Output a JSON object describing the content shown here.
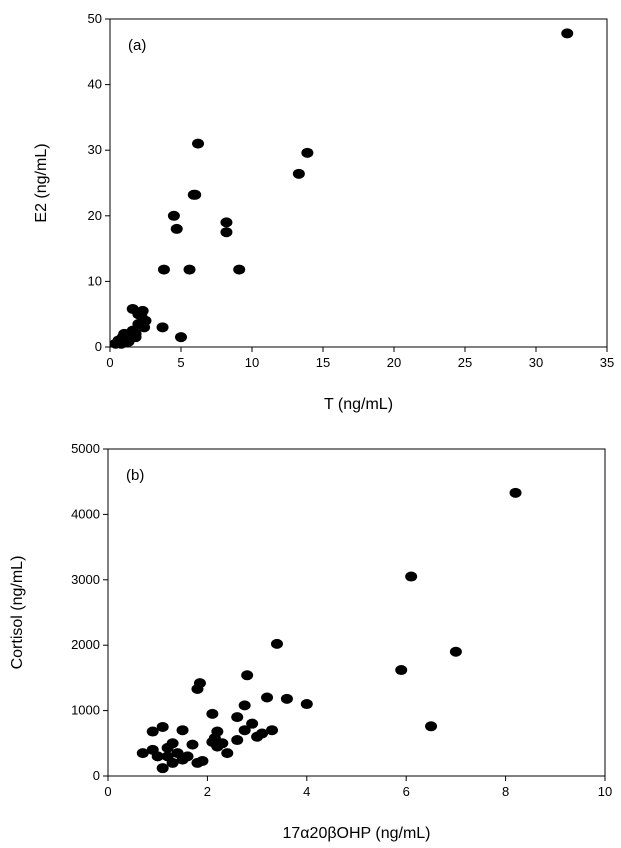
{
  "chart_data": [
    {
      "type": "scatter",
      "panel_label": "(a)",
      "xlabel": "T (ng/mL)",
      "ylabel": "E2 (ng/mL)",
      "xlim": [
        0,
        35
      ],
      "ylim": [
        0,
        50
      ],
      "xticks": [
        0,
        5,
        10,
        15,
        20,
        25,
        30,
        35
      ],
      "yticks": [
        0,
        10,
        20,
        30,
        40,
        50
      ],
      "grid": false,
      "marker_color": "#000000",
      "x": [
        0.4,
        0.6,
        0.8,
        0.9,
        1.0,
        1.1,
        1.2,
        1.3,
        1.4,
        1.5,
        1.6,
        1.8,
        1.8,
        2.0,
        2.0,
        2.2,
        2.3,
        2.4,
        2.5,
        1.6,
        3.7,
        3.8,
        4.5,
        4.7,
        5.0,
        5.6,
        5.9,
        6.0,
        6.2,
        8.2,
        8.2,
        9.1,
        13.3,
        13.9,
        32.2
      ],
      "y": [
        0.5,
        1.0,
        0.5,
        1.5,
        2.0,
        1.0,
        1.5,
        0.8,
        1.2,
        2.0,
        5.8,
        1.5,
        2.0,
        5.0,
        3.5,
        4.8,
        5.5,
        3.0,
        4.0,
        2.5,
        3.0,
        11.8,
        20.0,
        18.0,
        1.5,
        11.8,
        23.2,
        23.2,
        31.0,
        19.0,
        17.5,
        11.8,
        26.4,
        29.6,
        47.8
      ]
    },
    {
      "type": "scatter",
      "panel_label": "(b)",
      "xlabel": "17α20βOHP (ng/mL)",
      "ylabel": "Cortisol (ng/mL)",
      "xlim": [
        0,
        10
      ],
      "ylim": [
        0,
        5000
      ],
      "xticks": [
        0,
        2,
        4,
        6,
        8,
        10
      ],
      "yticks": [
        0,
        1000,
        2000,
        3000,
        4000,
        5000
      ],
      "grid": false,
      "marker_color": "#000000",
      "x": [
        0.7,
        0.9,
        0.9,
        1.0,
        1.1,
        1.1,
        1.2,
        1.2,
        1.3,
        1.3,
        1.4,
        1.5,
        1.5,
        1.6,
        1.7,
        1.8,
        1.9,
        1.8,
        1.85,
        2.1,
        2.1,
        2.15,
        2.2,
        2.2,
        2.3,
        2.4,
        2.6,
        2.6,
        2.75,
        2.75,
        2.8,
        2.9,
        3.0,
        3.1,
        3.2,
        3.3,
        3.4,
        3.6,
        4.0,
        5.9,
        6.1,
        6.5,
        7.0,
        8.2
      ],
      "y": [
        350,
        400,
        680,
        300,
        750,
        120,
        300,
        430,
        200,
        500,
        350,
        700,
        250,
        300,
        480,
        200,
        230,
        1330,
        1420,
        520,
        950,
        580,
        450,
        680,
        500,
        350,
        550,
        900,
        700,
        1080,
        1540,
        800,
        600,
        650,
        1200,
        700,
        2020,
        1180,
        1100,
        1620,
        3050,
        760,
        1900,
        4330
      ]
    }
  ]
}
